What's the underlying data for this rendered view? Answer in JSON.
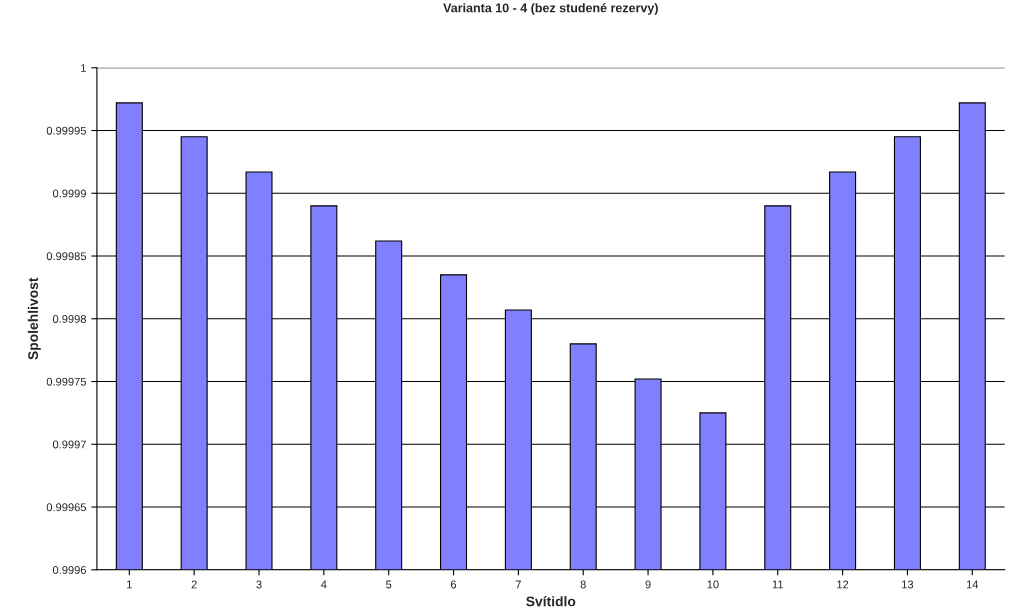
{
  "chart_data": {
    "type": "bar",
    "title": "Varianta 10 - 4 (bez studené rezervy)",
    "xlabel": "Svítidlo",
    "ylabel": "Spolehlivost",
    "categories": [
      "1",
      "2",
      "3",
      "4",
      "5",
      "6",
      "7",
      "8",
      "9",
      "10",
      "11",
      "12",
      "13",
      "14"
    ],
    "values": [
      0.999972,
      0.999945,
      0.999917,
      0.99989,
      0.999862,
      0.999835,
      0.999807,
      0.99978,
      0.999752,
      0.999725,
      0.99989,
      0.999917,
      0.999945,
      0.999972
    ],
    "color": "#8080ff",
    "ylim": [
      0.9996,
      1
    ],
    "yticks": [
      0.9996,
      0.99965,
      0.9997,
      0.99975,
      0.9998,
      0.99985,
      0.9999,
      0.99995,
      1
    ],
    "grid": "y"
  }
}
